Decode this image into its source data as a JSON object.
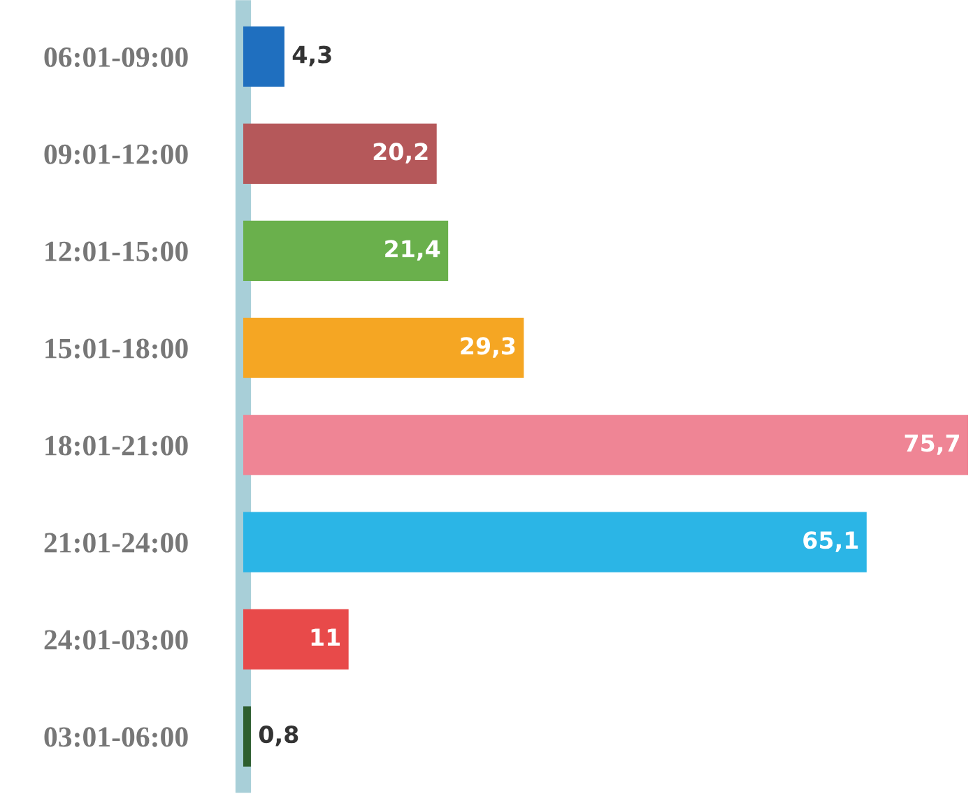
{
  "chart_data": {
    "type": "bar",
    "orientation": "horizontal",
    "categories": [
      "06:01-09:00",
      "09:01-12:00",
      "12:01-15:00",
      "15:01-18:00",
      "18:01-21:00",
      "21:01-24:00",
      "24:01-03:00",
      "03:01-06:00"
    ],
    "values": [
      4.3,
      20.2,
      21.4,
      29.3,
      75.7,
      65.1,
      11,
      0.8
    ],
    "value_labels": [
      "4,3",
      "20,2",
      "21,4",
      "29,3",
      "75,7",
      "65,1",
      "11",
      "0,8"
    ],
    "colors": [
      "#1f6fbf",
      "#b5585a",
      "#6ab04c",
      "#f5a623",
      "#ef8595",
      "#2bb5e6",
      "#e84a4a",
      "#2e5e2e"
    ],
    "grid": false
  }
}
